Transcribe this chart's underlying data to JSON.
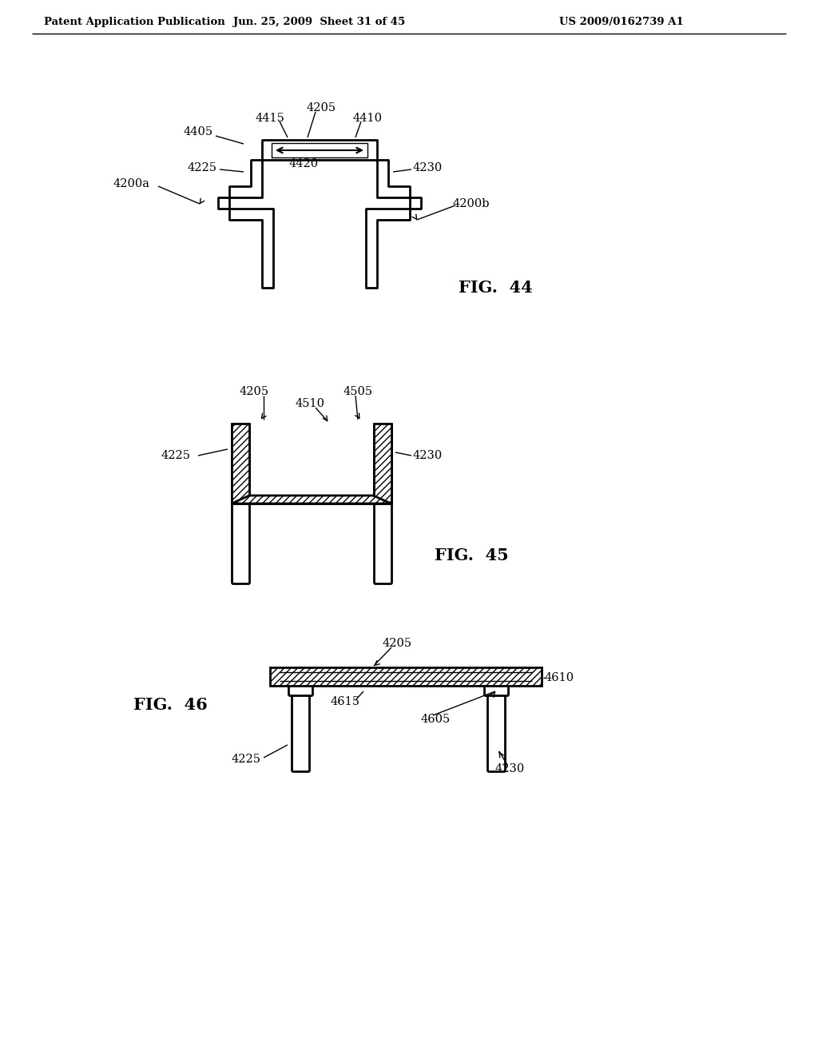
{
  "bg_color": "#ffffff",
  "header_text": "Patent Application Publication",
  "header_date": "Jun. 25, 2009  Sheet 31 of 45",
  "header_patent": "US 2009/0162739 A1",
  "fig44_label": "FIG.  44",
  "fig45_label": "FIG.  45",
  "fig46_label": "FIG.  46",
  "line_color": "#000000"
}
